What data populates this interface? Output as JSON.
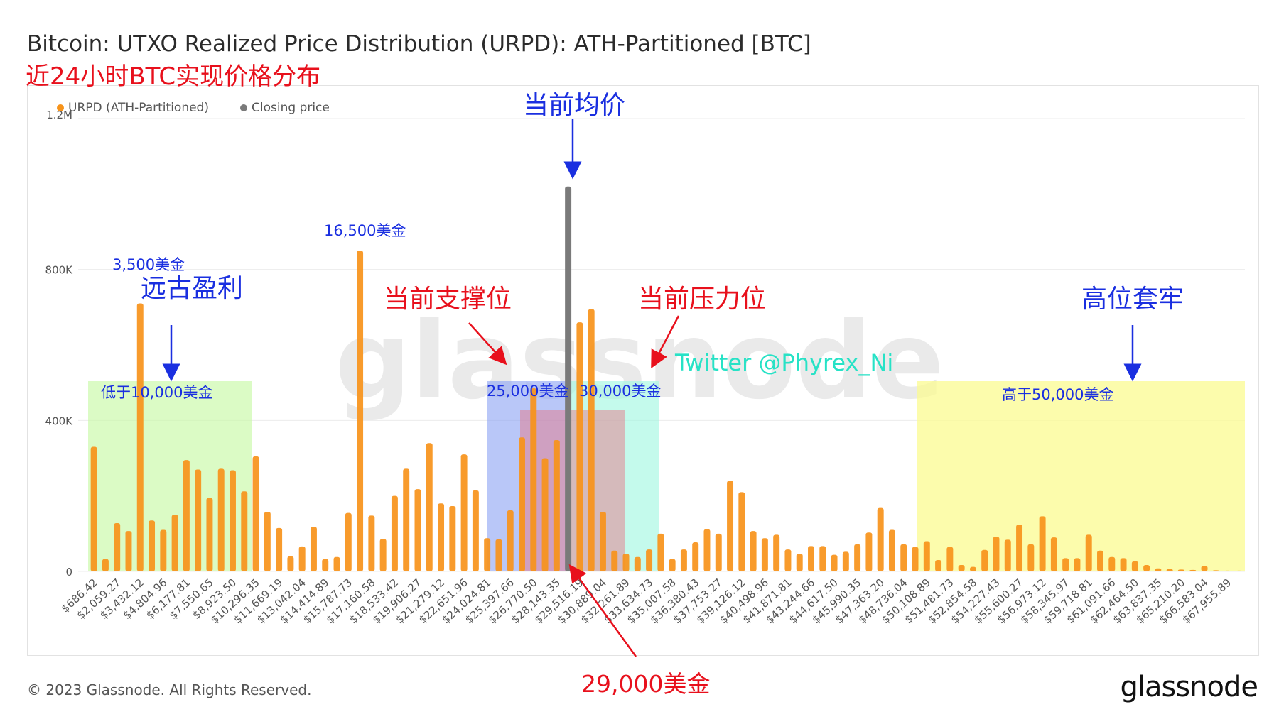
{
  "title": "Bitcoin: UTXO Realized Price Distribution (URPD): ATH-Partitioned [BTC]",
  "subtitle": "近24小时BTC实现价格分布",
  "footer": {
    "copyright": "© 2023 Glassnode. All Rights Reserved.",
    "brand": "glassnode"
  },
  "watermark": "glassnode",
  "colors": {
    "bar": "#f7931a",
    "closing": "#7a7a7a",
    "annotation_blue": "#1a2fe0",
    "annotation_red": "#e8101c",
    "twitter": "#27e2c6"
  },
  "legend": [
    {
      "label": "URPD (ATH-Partitioned)",
      "color": "#f7931a"
    },
    {
      "label": "Closing price",
      "color": "#7a7a7a"
    }
  ],
  "annotations": {
    "ancient_profit": "远古盈利",
    "below_10k": "低于10,000美金",
    "label_3500": "3,500美金",
    "label_16500": "16,500美金",
    "support": "当前支撑位",
    "current_avg": "当前均价",
    "resistance": "当前压力位",
    "label_25000": "25,000美金",
    "label_30000": "30,000美金",
    "twitter": "Twitter @Phyrex_Ni",
    "high_trapped": "高位套牢",
    "above_50k": "高于50,000美金",
    "label_29000": "29,000美金"
  },
  "chart_data": {
    "type": "bar",
    "ylim": [
      0,
      1200000
    ],
    "yticks": [
      0,
      400000,
      800000,
      1200000
    ],
    "ytick_labels": [
      "0",
      "400K",
      "800K",
      "1.2M"
    ],
    "grid": true,
    "legend_position": "top-left",
    "tick_labels": [
      "$686.42",
      "$2,059.27",
      "$3,432.12",
      "$4,804.96",
      "$6,177.81",
      "$7,550.65",
      "$8,923.50",
      "$10,296.35",
      "$11,669.19",
      "$13,042.04",
      "$14,414.89",
      "$15,787.73",
      "$17,160.58",
      "$18,533.42",
      "$19,906.27",
      "$21,279.12",
      "$22,651.96",
      "$24,024.81",
      "$25,397.66",
      "$26,770.50",
      "$28,143.35",
      "$29,516.19",
      "$30,889.04",
      "$32,261.89",
      "$33,634.73",
      "$35,007.58",
      "$36,380.43",
      "$37,753.27",
      "$39,126.12",
      "$40,498.96",
      "$41,871.81",
      "$43,244.66",
      "$44,617.50",
      "$45,990.35",
      "$47,363.20",
      "$48,736.04",
      "$50,108.89",
      "$51,481.73",
      "$52,854.58",
      "$54,227.43",
      "$55,600.27",
      "$56,973.12",
      "$58,345.97",
      "$59,718.81",
      "$61,091.66",
      "$62,464.50",
      "$63,837.35",
      "$65,210.20",
      "$66,583.04",
      "$67,955.89"
    ],
    "series": [
      {
        "name": "URPD (ATH-Partitioned)",
        "values": [
          330000,
          33000,
          128000,
          107000,
          710000,
          135000,
          110000,
          150000,
          295000,
          270000,
          195000,
          272000,
          268000,
          212000,
          305000,
          158000,
          115000,
          40000,
          66000,
          118000,
          33000,
          38000,
          155000,
          850000,
          148000,
          86000,
          200000,
          272000,
          218000,
          340000,
          180000,
          173000,
          310000,
          215000,
          88000,
          85000,
          162000,
          355000,
          485000,
          300000,
          348000,
          0,
          660000,
          695000,
          158000,
          55000,
          47000,
          38000,
          58000,
          100000,
          33000,
          58000,
          77000,
          112000,
          100000,
          240000,
          210000,
          107000,
          88000,
          97000,
          58000,
          47000,
          67000,
          67000,
          44000,
          52000,
          72000,
          103000,
          168000,
          110000,
          72000,
          65000,
          80000,
          30000,
          65000,
          17000,
          12000,
          57000,
          92000,
          84000,
          124000,
          72000,
          146000,
          90000,
          35000,
          35000,
          97000,
          55000,
          38000,
          35000,
          27000,
          17000,
          8000,
          6000,
          5000,
          4000,
          15000,
          3000,
          2000,
          2000
        ]
      },
      {
        "name": "Closing price",
        "index": 41,
        "values": [
          1020000
        ]
      }
    ]
  }
}
